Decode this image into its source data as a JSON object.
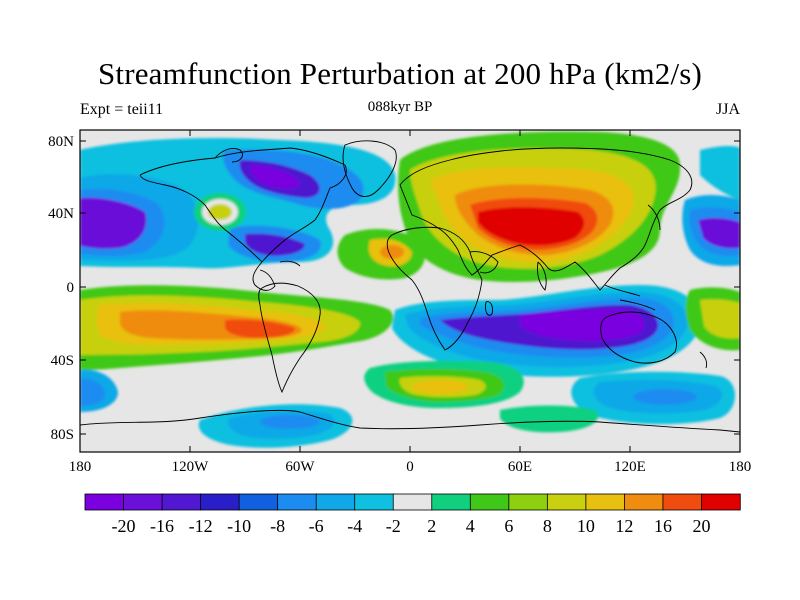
{
  "title": "Streamfunction Perturbation at 200 hPa (km2/s)",
  "left_label": "Expt = teii11",
  "center_label": "088kyr BP",
  "right_label": "JJA",
  "lat_ticks": [
    "80N",
    "40N",
    "0",
    "40S",
    "80S"
  ],
  "lon_ticks": [
    "180",
    "120W",
    "60W",
    "0",
    "60E",
    "120E",
    "180"
  ],
  "colorbar": {
    "colors": [
      "#7a00e0",
      "#6a10d8",
      "#5018d0",
      "#2a1ec8",
      "#1060e0",
      "#1c8cf0",
      "#10a8e8",
      "#10c0e0",
      "#e6e6e6",
      "#10d080",
      "#40c818",
      "#8ed010",
      "#c8d010",
      "#e8c010",
      "#f08c10",
      "#f04c10",
      "#e00000"
    ],
    "labels": [
      "-20",
      "-16",
      "-12",
      "-10",
      "-8",
      "-6",
      "-4",
      "-2",
      "2",
      "4",
      "6",
      "8",
      "10",
      "12",
      "16",
      "20"
    ]
  }
}
